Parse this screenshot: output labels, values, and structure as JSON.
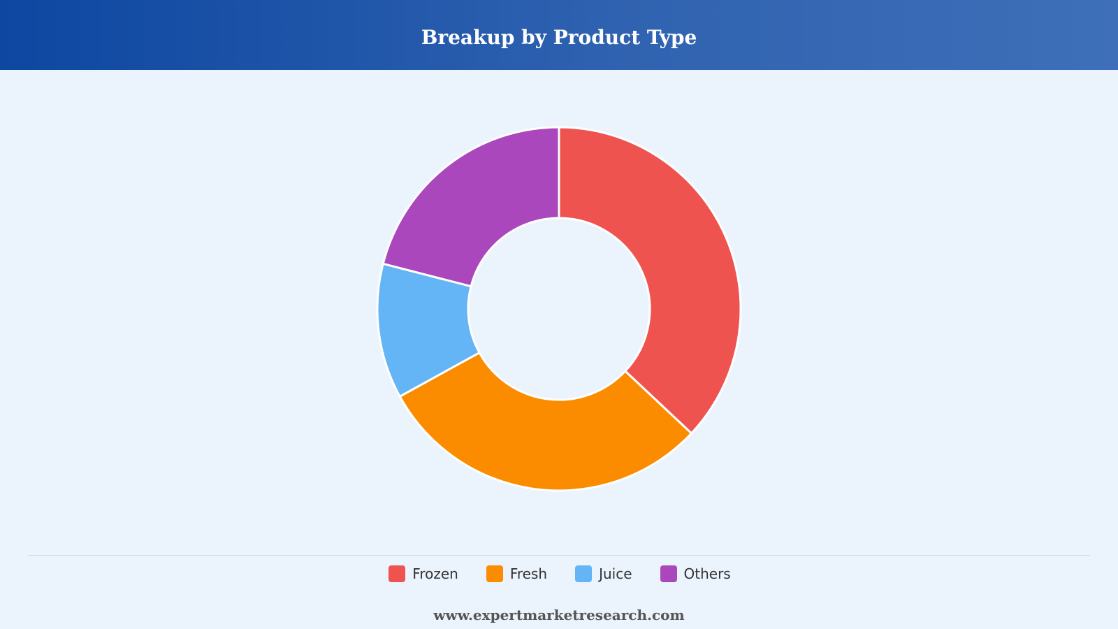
{
  "header": {
    "title": "Breakup by Product Type"
  },
  "colors": {
    "header_start": "#0d47a1",
    "header_end": "#3e6fb8",
    "background": "#ebf3fc",
    "slice_border": "#ffffff"
  },
  "chart_data": {
    "type": "pie",
    "subtype": "donut",
    "title": "Breakup by Product Type",
    "categories": [
      "Frozen",
      "Fresh",
      "Juice",
      "Others"
    ],
    "values": [
      37,
      30,
      12,
      21
    ],
    "colors": [
      "#ef5350",
      "#fb8c00",
      "#64b5f6",
      "#ab47bc"
    ],
    "start_angle_deg": 0,
    "legend_position": "bottom"
  },
  "legend": {
    "items": [
      {
        "label": "Frozen",
        "color": "#ef5350"
      },
      {
        "label": "Fresh",
        "color": "#fb8c00"
      },
      {
        "label": "Juice",
        "color": "#64b5f6"
      },
      {
        "label": "Others",
        "color": "#ab47bc"
      }
    ]
  },
  "footer": {
    "text": "www.expertmarketresearch.com"
  }
}
